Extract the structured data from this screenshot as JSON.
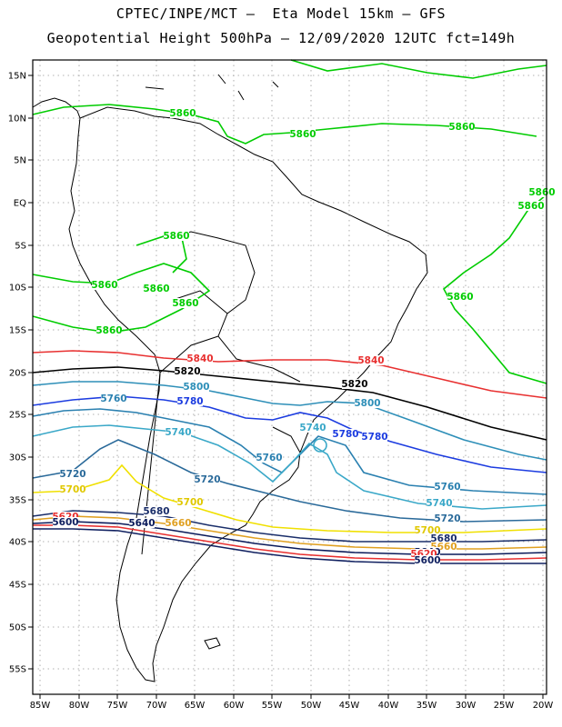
{
  "header": {
    "line1": "CPTEC/INPE/MCT –  Eta Model 15km – GFS",
    "line2": "Geopotential Height 500hPa – 12/09/2020 12UTC fct=149h"
  },
  "axes": {
    "lat_labels": [
      "15N",
      "10N",
      "5N",
      "EQ",
      "5S",
      "10S",
      "15S",
      "20S",
      "25S",
      "30S",
      "35S",
      "40S",
      "45S",
      "50S",
      "55S"
    ],
    "lon_labels": [
      "85W",
      "80W",
      "75W",
      "70W",
      "65W",
      "60W",
      "55W",
      "50W",
      "45W",
      "40W",
      "35W",
      "30W",
      "25W",
      "20W"
    ]
  },
  "contour_colors": {
    "5860": "#00cc00",
    "5840": "#e83030",
    "5820": "#000000",
    "5800": "#2e8fb8",
    "5780": "#1c3ce0",
    "5760": "#2a80b0",
    "5740": "#3aa8c8",
    "5720": "#2a6a9a",
    "5700": "#f0e000",
    "5680": "#1a2e6a",
    "5660": "#e0a020",
    "5640": "#0a1a5a",
    "5620": "#e83030",
    "5600": "#102060"
  },
  "contour_labels": [
    {
      "text": "5860",
      "color": "#00cc00"
    },
    {
      "text": "5860",
      "color": "#00cc00"
    },
    {
      "text": "5860",
      "color": "#00cc00"
    },
    {
      "text": "5860",
      "color": "#00cc00"
    },
    {
      "text": "5860",
      "color": "#00cc00"
    },
    {
      "text": "5860",
      "color": "#00cc00"
    },
    {
      "text": "5860",
      "color": "#00cc00"
    },
    {
      "text": "5860",
      "color": "#00cc00"
    },
    {
      "text": "5860",
      "color": "#00cc00"
    },
    {
      "text": "5860",
      "color": "#00cc00"
    },
    {
      "text": "5860",
      "color": "#00cc00"
    },
    {
      "text": "5840",
      "color": "#e83030"
    },
    {
      "text": "5840",
      "color": "#e83030"
    },
    {
      "text": "5820",
      "color": "#000000"
    },
    {
      "text": "5820",
      "color": "#000000"
    },
    {
      "text": "5800",
      "color": "#2e8fb8"
    },
    {
      "text": "5800",
      "color": "#2e8fb8"
    },
    {
      "text": "5780",
      "color": "#1c3ce0"
    },
    {
      "text": "5780",
      "color": "#1c3ce0"
    },
    {
      "text": "5780",
      "color": "#1c3ce0"
    },
    {
      "text": "5760",
      "color": "#2a80b0"
    },
    {
      "text": "5760",
      "color": "#2a80b0"
    },
    {
      "text": "5760",
      "color": "#2a80b0"
    },
    {
      "text": "5740",
      "color": "#3aa8c8"
    },
    {
      "text": "5740",
      "color": "#3aa8c8"
    },
    {
      "text": "5740",
      "color": "#3aa8c8"
    },
    {
      "text": "5720",
      "color": "#2a6a9a"
    },
    {
      "text": "5720",
      "color": "#2a6a9a"
    },
    {
      "text": "5720",
      "color": "#2a6a9a"
    },
    {
      "text": "5700",
      "color": "#e0c800"
    },
    {
      "text": "5700",
      "color": "#e0c800"
    },
    {
      "text": "5700",
      "color": "#e0c800"
    },
    {
      "text": "5680",
      "color": "#1a2e6a"
    },
    {
      "text": "5680",
      "color": "#1a2e6a"
    },
    {
      "text": "5660",
      "color": "#e0a020"
    },
    {
      "text": "5660",
      "color": "#e0a020"
    },
    {
      "text": "5640",
      "color": "#0a1a5a"
    },
    {
      "text": "5640",
      "color": "#0a1a5a"
    },
    {
      "text": "5620",
      "color": "#e83030"
    },
    {
      "text": "5620",
      "color": "#e83030"
    },
    {
      "text": "5600",
      "color": "#102060"
    },
    {
      "text": "5600",
      "color": "#102060"
    }
  ]
}
